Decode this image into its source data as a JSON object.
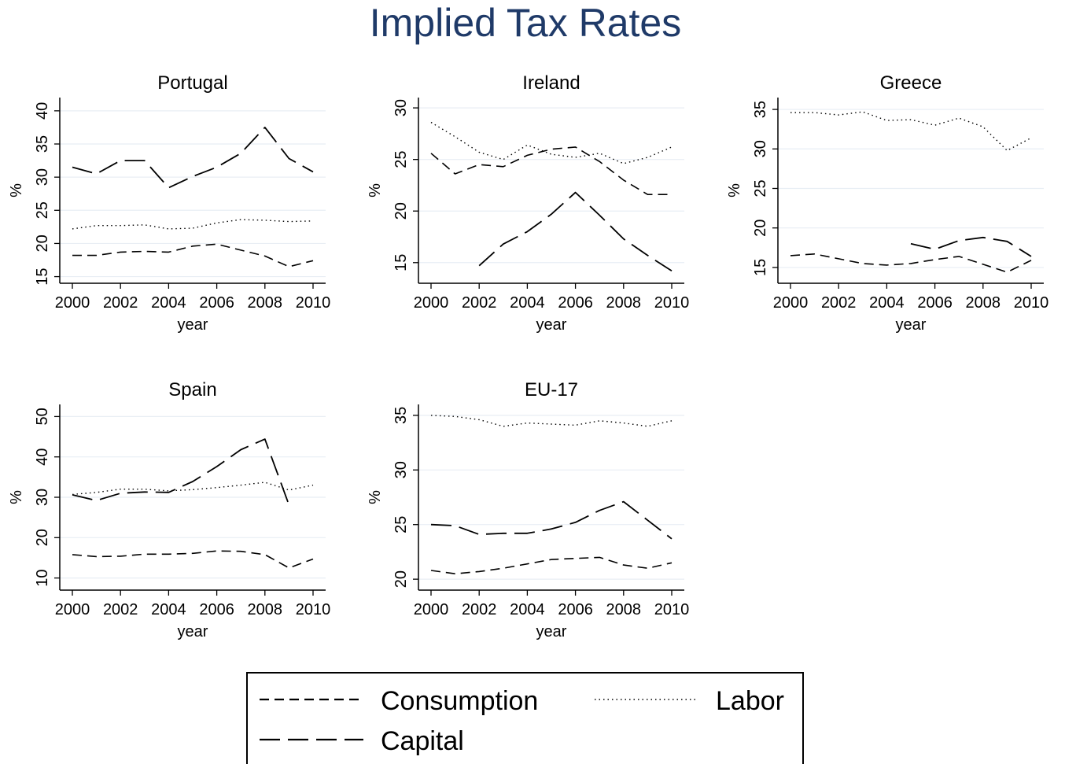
{
  "title": "Implied Tax Rates",
  "legend": {
    "placement": "bottom-center",
    "items": [
      {
        "name": "Consumption",
        "style": "short-dash"
      },
      {
        "name": "Labor",
        "style": "dotted"
      },
      {
        "name": "Capital",
        "style": "long-dash"
      }
    ]
  },
  "colors": {
    "title": "#1f3a68",
    "line": "#000000",
    "grid": "#e8eef4"
  },
  "chart_data": [
    {
      "type": "line",
      "title": "Portugal",
      "xlabel": "year",
      "ylabel": "%",
      "xlim": [
        2000,
        2010
      ],
      "ylim": [
        14,
        42
      ],
      "grid": true,
      "xticks": [
        2000,
        2002,
        2004,
        2006,
        2008,
        2010
      ],
      "yticks": [
        15,
        20,
        25,
        30,
        35,
        40
      ],
      "x": [
        2000,
        2001,
        2002,
        2003,
        2004,
        2005,
        2006,
        2007,
        2008,
        2009,
        2010
      ],
      "series": [
        {
          "name": "Consumption",
          "values": [
            18.2,
            18.2,
            18.7,
            18.8,
            18.7,
            19.6,
            19.9,
            19.0,
            18.1,
            16.5,
            17.4
          ]
        },
        {
          "name": "Labor",
          "values": [
            22.2,
            22.7,
            22.7,
            22.8,
            22.2,
            22.3,
            23.1,
            23.6,
            23.5,
            23.3,
            23.4
          ]
        },
        {
          "name": "Capital",
          "values": [
            31.5,
            30.5,
            32.5,
            32.5,
            28.4,
            30.1,
            31.5,
            33.6,
            37.5,
            32.8,
            30.8
          ]
        }
      ]
    },
    {
      "type": "line",
      "title": "Ireland",
      "xlabel": "year",
      "ylabel": "%",
      "xlim": [
        2000,
        2010
      ],
      "ylim": [
        13,
        31
      ],
      "grid": true,
      "xticks": [
        2000,
        2002,
        2004,
        2006,
        2008,
        2010
      ],
      "yticks": [
        15,
        20,
        25,
        30
      ],
      "x": [
        2000,
        2001,
        2002,
        2003,
        2004,
        2005,
        2006,
        2007,
        2008,
        2009,
        2010
      ],
      "series": [
        {
          "name": "Consumption",
          "values": [
            25.6,
            23.6,
            24.5,
            24.3,
            25.4,
            26.0,
            26.2,
            24.8,
            23.0,
            21.6,
            21.6
          ]
        },
        {
          "name": "Labor",
          "values": [
            28.6,
            27.2,
            25.7,
            25.0,
            26.4,
            25.5,
            25.2,
            25.6,
            24.6,
            25.2,
            26.2
          ]
        },
        {
          "name": "Capital",
          "values": [
            null,
            null,
            14.7,
            16.8,
            18.0,
            19.7,
            21.8,
            19.6,
            17.3,
            15.7,
            14.2
          ]
        }
      ]
    },
    {
      "type": "line",
      "title": "Greece",
      "xlabel": "year",
      "ylabel": "%",
      "xlim": [
        2000,
        2010
      ],
      "ylim": [
        13,
        36.5
      ],
      "grid": true,
      "xticks": [
        2000,
        2002,
        2004,
        2006,
        2008,
        2010
      ],
      "yticks": [
        15,
        20,
        25,
        30,
        35
      ],
      "x": [
        2000,
        2001,
        2002,
        2003,
        2004,
        2005,
        2006,
        2007,
        2008,
        2009,
        2010
      ],
      "series": [
        {
          "name": "Consumption",
          "values": [
            16.5,
            16.7,
            16.1,
            15.5,
            15.3,
            15.5,
            16.0,
            16.4,
            15.4,
            14.4,
            15.9
          ]
        },
        {
          "name": "Labor",
          "values": [
            34.6,
            34.6,
            34.3,
            34.7,
            33.6,
            33.7,
            33.0,
            33.9,
            32.8,
            29.8,
            31.4
          ]
        },
        {
          "name": "Capital",
          "values": [
            null,
            null,
            null,
            null,
            null,
            18.0,
            17.3,
            18.4,
            18.8,
            18.3,
            16.4
          ]
        }
      ]
    },
    {
      "type": "line",
      "title": "Spain",
      "xlabel": "year",
      "ylabel": "%",
      "xlim": [
        2000,
        2010
      ],
      "ylim": [
        7,
        53
      ],
      "grid": true,
      "xticks": [
        2000,
        2002,
        2004,
        2006,
        2008,
        2010
      ],
      "yticks": [
        10,
        20,
        30,
        40,
        50
      ],
      "x": [
        2000,
        2001,
        2002,
        2003,
        2004,
        2005,
        2006,
        2007,
        2008,
        2009,
        2010
      ],
      "series": [
        {
          "name": "Consumption",
          "values": [
            15.8,
            15.3,
            15.4,
            15.9,
            15.9,
            16.1,
            16.7,
            16.6,
            15.8,
            12.5,
            14.7
          ]
        },
        {
          "name": "Labor",
          "values": [
            30.7,
            31.2,
            32.0,
            32.0,
            31.6,
            31.9,
            32.4,
            33.0,
            33.7,
            31.8,
            33.0
          ]
        },
        {
          "name": "Capital",
          "values": [
            30.6,
            29.2,
            31.0,
            31.3,
            31.2,
            33.9,
            37.6,
            41.8,
            44.4,
            28.1,
            null
          ]
        }
      ]
    },
    {
      "type": "line",
      "title": "EU-17",
      "xlabel": "year",
      "ylabel": "%",
      "xlim": [
        2000,
        2010
      ],
      "ylim": [
        19,
        36
      ],
      "grid": true,
      "xticks": [
        2000,
        2002,
        2004,
        2006,
        2008,
        2010
      ],
      "yticks": [
        20,
        25,
        30,
        35
      ],
      "x": [
        2000,
        2001,
        2002,
        2003,
        2004,
        2005,
        2006,
        2007,
        2008,
        2009,
        2010
      ],
      "series": [
        {
          "name": "Consumption",
          "values": [
            20.8,
            20.5,
            20.7,
            21.0,
            21.4,
            21.8,
            21.9,
            22.0,
            21.3,
            21.0,
            21.5
          ]
        },
        {
          "name": "Labor",
          "values": [
            35.0,
            34.9,
            34.6,
            34.0,
            34.3,
            34.2,
            34.1,
            34.5,
            34.3,
            34.0,
            34.5
          ]
        },
        {
          "name": "Capital",
          "values": [
            25.0,
            24.9,
            24.1,
            24.2,
            24.2,
            24.6,
            25.2,
            26.3,
            27.1,
            25.4,
            23.7
          ]
        }
      ]
    }
  ]
}
